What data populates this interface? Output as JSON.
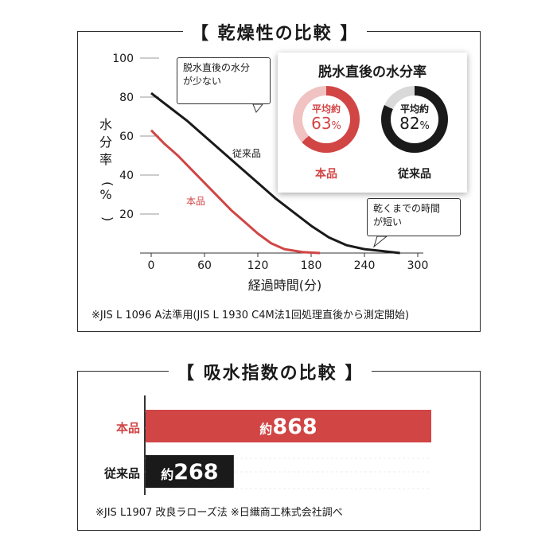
{
  "section1": {
    "title": "【 乾燥性の比較 】",
    "card": {
      "title": "脱水直後の水分率",
      "items": [
        {
          "label": "平均約",
          "value": "63",
          "unit": "%",
          "percent": 63,
          "name": "本品",
          "color": "#d14545"
        },
        {
          "label": "平均約",
          "value": "82",
          "unit": "%",
          "percent": 82,
          "name": "従来品",
          "color": "#1a1a1a"
        }
      ]
    },
    "callout_top": [
      "脱水直後の水分",
      "が少ない"
    ],
    "callout_bottom": [
      "乾くまでの時間",
      "が短い"
    ],
    "note": "※JIS L 1096 A法準用(JIS L 1930 C4M法1回処理直後から測定開始)"
  },
  "section2": {
    "title": "【 吸水指数の比較 】",
    "note": "※JIS L1907 改良ラローズ法 ※日織商工株式会社調べ"
  },
  "chart_data": [
    {
      "type": "line",
      "xlabel": "経過時間(分)",
      "ylabel": "水分率(%)",
      "xlim": [
        0,
        300
      ],
      "ylim": [
        0,
        100
      ],
      "x_ticks": [
        0,
        60,
        120,
        180,
        240,
        300
      ],
      "y_ticks": [
        20,
        40,
        60,
        80,
        100
      ],
      "grid": false,
      "series": [
        {
          "name": "従来品",
          "color": "#1a1a1a",
          "x": [
            0,
            20,
            40,
            60,
            80,
            100,
            120,
            140,
            160,
            180,
            200,
            220,
            240,
            260,
            280
          ],
          "y": [
            82,
            75,
            68,
            60,
            52,
            44,
            36,
            28,
            21,
            14,
            8,
            4,
            2,
            1,
            0
          ]
        },
        {
          "name": "本品",
          "color": "#d14545",
          "x": [
            0,
            15,
            30,
            45,
            60,
            75,
            90,
            105,
            120,
            135,
            150,
            170,
            190
          ],
          "y": [
            63,
            56,
            50,
            43,
            36,
            29,
            22,
            16,
            10,
            5,
            2,
            0.5,
            0
          ]
        }
      ]
    },
    {
      "type": "bar",
      "orientation": "horizontal",
      "categories": [
        "本品",
        "従来品"
      ],
      "values": [
        868,
        268
      ],
      "value_prefix": "約",
      "colors": [
        "#d14545",
        "#1a1a1a"
      ],
      "xlim": [
        0,
        868
      ]
    }
  ]
}
